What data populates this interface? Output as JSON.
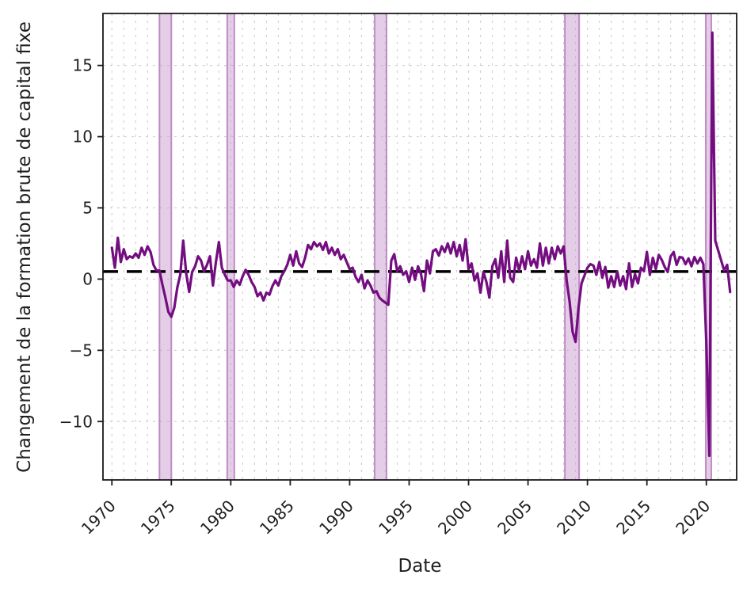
{
  "figure": {
    "background": "#ffffff"
  },
  "chart_data": {
    "type": "line",
    "title": "",
    "xlabel": "Date",
    "ylabel": "Changement de la formation brute de capital fixe",
    "x_axis": {
      "tick_years": [
        1970,
        1975,
        1980,
        1985,
        1990,
        1995,
        2000,
        2005,
        2010,
        2015,
        2020
      ],
      "tick_labels": [
        "1970",
        "1975",
        "1980",
        "1985",
        "1990",
        "1995",
        "2000",
        "2005",
        "2010",
        "2015",
        "2020"
      ],
      "tick_rotation_deg": 45
    },
    "y_axis": {
      "ticks": [
        -10,
        -5,
        0,
        5,
        10,
        15
      ],
      "tick_labels": [
        "−10",
        "−5",
        "0",
        "5",
        "10",
        "15"
      ]
    },
    "xlim": [
      1969.25,
      2022.55
    ],
    "ylim": [
      -14.1,
      18.65
    ],
    "grid": "dashed, light gray, yearly vertical + horizontal at y ticks",
    "baseline_value": 0.53,
    "baseline_style": "black dashed horizontal line",
    "recession_bands": [
      {
        "start": 1974.0,
        "end": 1975.0
      },
      {
        "start": 1979.7,
        "end": 1980.3
      },
      {
        "start": 1992.1,
        "end": 1993.1
      },
      {
        "start": 2008.1,
        "end": 2009.3
      },
      {
        "start": 2019.95,
        "end": 2020.42
      }
    ],
    "series": [
      {
        "name": "Changement de la formation brute de capital fixe",
        "frequency": "quarterly",
        "start_year": 1970,
        "values": [
          2.2,
          0.8,
          2.9,
          1.2,
          2.1,
          1.4,
          1.6,
          1.5,
          1.8,
          1.5,
          2.2,
          1.7,
          2.3,
          1.9,
          1.0,
          0.6,
          0.6,
          -0.4,
          -1.3,
          -2.3,
          -2.65,
          -2.0,
          -0.6,
          0.3,
          2.7,
          0.4,
          -0.9,
          0.5,
          0.9,
          1.6,
          1.3,
          0.55,
          1.0,
          1.6,
          -0.45,
          1.2,
          2.6,
          0.8,
          0.3,
          -0.1,
          -0.1,
          -0.55,
          -0.1,
          -0.4,
          0.2,
          0.65,
          0.3,
          -0.2,
          -0.55,
          -1.2,
          -0.95,
          -1.5,
          -0.95,
          -1.1,
          -0.5,
          -0.1,
          -0.45,
          0.2,
          0.55,
          1.0,
          1.7,
          0.95,
          1.95,
          1.1,
          0.85,
          1.5,
          2.4,
          2.1,
          2.6,
          2.3,
          2.5,
          2.05,
          2.6,
          1.8,
          2.2,
          1.7,
          2.1,
          1.4,
          1.7,
          1.2,
          0.7,
          0.8,
          0.15,
          -0.2,
          0.3,
          -0.65,
          -0.1,
          -0.45,
          -0.95,
          -0.85,
          -1.3,
          -1.5,
          -1.65,
          -1.8,
          1.3,
          1.75,
          0.55,
          0.9,
          0.3,
          0.55,
          -0.2,
          0.8,
          -0.05,
          0.9,
          0.35,
          -0.85,
          1.3,
          0.4,
          1.95,
          2.1,
          1.65,
          2.3,
          1.9,
          2.5,
          1.8,
          2.6,
          1.6,
          2.4,
          1.3,
          2.8,
          0.7,
          1.1,
          -0.1,
          0.4,
          -0.95,
          0.5,
          -0.2,
          -1.3,
          0.9,
          1.4,
          0.1,
          1.95,
          -0.2,
          2.7,
          0.1,
          -0.2,
          1.5,
          0.6,
          1.6,
          0.7,
          1.95,
          0.95,
          1.4,
          0.8,
          2.5,
          0.95,
          2.2,
          1.1,
          2.2,
          1.4,
          2.3,
          1.8,
          2.3,
          -0.1,
          -1.6,
          -3.7,
          -4.4,
          -2.0,
          -0.3,
          0.25,
          0.8,
          1.05,
          0.95,
          0.3,
          1.2,
          0.1,
          0.85,
          -0.6,
          0.2,
          -0.55,
          0.55,
          -0.45,
          0.2,
          -0.7,
          1.1,
          -0.55,
          0.35,
          -0.3,
          0.8,
          0.55,
          1.9,
          0.3,
          1.5,
          0.7,
          1.7,
          1.35,
          0.85,
          0.5,
          1.6,
          1.9,
          1.0,
          1.55,
          1.5,
          1.05,
          1.45,
          0.9,
          1.55,
          1.1,
          1.5,
          1.05,
          -4.5,
          -12.4,
          17.3,
          2.7,
          2.0,
          1.3,
          0.6,
          1.0,
          -0.9
        ]
      }
    ],
    "colors": {
      "line": "#730d80",
      "band_fill": "#c99bce",
      "band_edge": "#b87cbd",
      "baseline": "#000000",
      "grid": "#d2d2d2",
      "spine": "#1a1a1a",
      "text": "#1f1f1f",
      "background": "#ffffff"
    }
  }
}
